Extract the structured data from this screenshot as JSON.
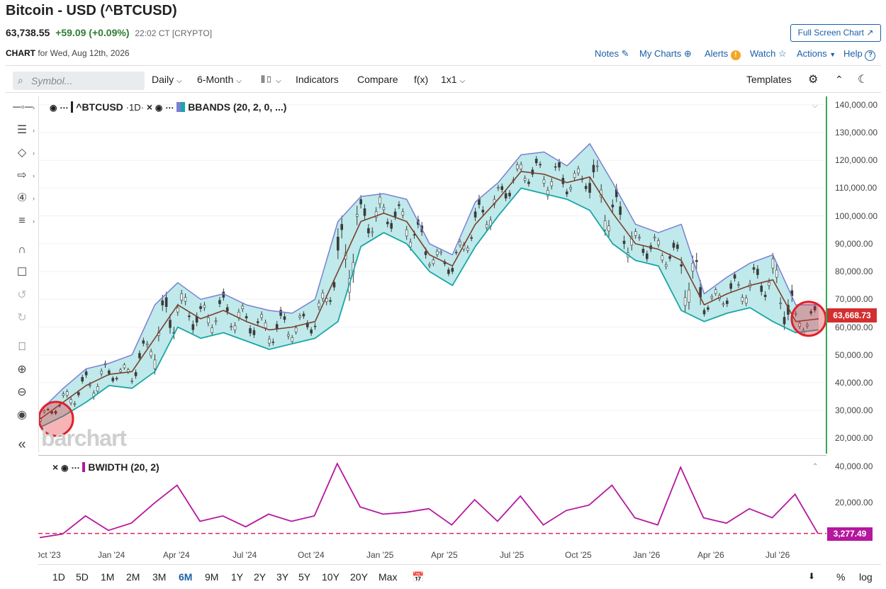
{
  "header": {
    "title": "Bitcoin - USD (^BTCUSD)",
    "last_price": "63,738.55",
    "change": "+59.09 (+0.09%)",
    "time": "22:02 CT [CRYPTO]",
    "fullscreen_label": "Full Screen Chart",
    "chart_for_bold": "CHART",
    "chart_for_rest": "for Wed, Aug 12th, 2026"
  },
  "top_links": {
    "notes": "Notes",
    "my_charts": "My Charts",
    "alerts": "Alerts",
    "watch": "Watch",
    "actions": "Actions",
    "help": "Help"
  },
  "toolbar": {
    "search_placeholder": "Symbol...",
    "interval": "Daily",
    "range": "6-Month",
    "indicators": "Indicators",
    "compare": "Compare",
    "fx": "f(x)",
    "layout": "1x1",
    "templates": "Templates"
  },
  "main_legend": {
    "symbol": "^BTCUSD",
    "interval": "·1D·",
    "study": "BBANDS (20, 2, 0, ...)"
  },
  "indicator_legend": {
    "study": "BWIDTH (20, 2)"
  },
  "colors": {
    "band_fill": "#bfe9ea",
    "upper_band": "#7b7fd4",
    "lower_band": "#19a6a6",
    "middle_band": "#7b3f2e",
    "candle": "#3a3a3a",
    "bwidth": "#b5179e",
    "price_tag": "#d32f2f",
    "axis_green": "#34a853",
    "highlight": "#e0202a"
  },
  "price_tag": "63,668.73",
  "bwidth_tag": "3,277.49",
  "watermark": "barchart",
  "range_buttons": [
    "1D",
    "5D",
    "1M",
    "2M",
    "3M",
    "6M",
    "9M",
    "1Y",
    "2Y",
    "3Y",
    "5Y",
    "10Y",
    "20Y",
    "Max"
  ],
  "range_active": "6M",
  "bottom_right": {
    "percent": "%",
    "log": "log"
  },
  "chart_data": [
    {
      "type": "line",
      "title": "^BTCUSD ·1D· BBANDS (20, 2, 0, ...)",
      "x_ticks": [
        "Oct '23",
        "Jan '24",
        "Apr '24",
        "Jul '24",
        "Oct '24",
        "Jan '25",
        "Apr '25",
        "Jul '25",
        "Oct '25",
        "Jan '26",
        "Apr '26",
        "Jul '26"
      ],
      "y_ticks": [
        "140,000.00",
        "130,000.00",
        "120,000.00",
        "110,000.00",
        "100,000.00",
        "90,000.00",
        "80,000.00",
        "70,000.00",
        "60,000.00",
        "50,000.00",
        "40,000.00",
        "30,000.00",
        "20,000.00"
      ],
      "ylim": [
        15000,
        143000
      ],
      "x": [
        "Oct '23",
        "Nov '23",
        "Dec '23",
        "Jan '24",
        "Feb '24",
        "Mar '24",
        "Apr '24",
        "May '24",
        "Jun '24",
        "Jul '24",
        "Aug '24",
        "Sep '24",
        "Oct '24",
        "Nov '24",
        "Dec '24",
        "Jan '25",
        "Feb '25",
        "Mar '25",
        "Apr '25",
        "May '25",
        "Jun '25",
        "Jul '25",
        "Aug '25",
        "Sep '25",
        "Oct '25",
        "Nov '25",
        "Dec '25",
        "Jan '26",
        "Feb '26",
        "Mar '26",
        "Apr '26",
        "May '26",
        "Jun '26",
        "Jul '26",
        "Aug '26"
      ],
      "series": [
        {
          "name": "Upper",
          "values": [
            30000,
            38000,
            45000,
            47000,
            50000,
            68000,
            76000,
            70000,
            72000,
            68000,
            66000,
            65000,
            70000,
            98000,
            107000,
            108000,
            106000,
            90000,
            86000,
            105000,
            112000,
            122000,
            123000,
            118000,
            126000,
            112000,
            97000,
            94000,
            97000,
            72000,
            78000,
            83000,
            86000,
            68000,
            68000
          ]
        },
        {
          "name": "Middle",
          "values": [
            27000,
            33000,
            39000,
            43000,
            44000,
            56000,
            68000,
            63000,
            66000,
            62000,
            59000,
            60000,
            62000,
            80000,
            98000,
            101000,
            98000,
            86000,
            82000,
            97000,
            106000,
            116000,
            115000,
            112000,
            114000,
            101000,
            90000,
            88000,
            84000,
            68000,
            72000,
            75000,
            77000,
            62000,
            63000
          ]
        },
        {
          "name": "Lower",
          "values": [
            24000,
            28000,
            33000,
            39000,
            38000,
            44000,
            60000,
            56000,
            58000,
            55000,
            52000,
            54000,
            56000,
            62000,
            89000,
            94000,
            90000,
            80000,
            75000,
            89000,
            100000,
            110000,
            108000,
            106000,
            102000,
            90000,
            84000,
            82000,
            66000,
            62000,
            65000,
            67000,
            62000,
            58000,
            59000
          ]
        }
      ]
    },
    {
      "type": "line",
      "title": "BWIDTH (20, 2)",
      "y_ticks": [
        "40,000.00",
        "20,000.00"
      ],
      "ylim": [
        0,
        44000
      ],
      "x": [
        "Oct '23",
        "Nov '23",
        "Dec '23",
        "Jan '24",
        "Feb '24",
        "Mar '24",
        "Apr '24",
        "May '24",
        "Jun '24",
        "Jul '24",
        "Aug '24",
        "Sep '24",
        "Oct '24",
        "Nov '24",
        "Dec '24",
        "Jan '25",
        "Feb '25",
        "Mar '25",
        "Apr '25",
        "May '25",
        "Jun '25",
        "Jul '25",
        "Aug '25",
        "Sep '25",
        "Oct '25",
        "Nov '25",
        "Dec '25",
        "Jan '26",
        "Feb '26",
        "Mar '26",
        "Apr '26",
        "May '26",
        "Jun '26",
        "Jul '26",
        "Aug '26"
      ],
      "series": [
        {
          "name": "BWIDTH",
          "values": [
            1000,
            3000,
            13000,
            5000,
            9000,
            20000,
            30000,
            10000,
            13000,
            7000,
            14000,
            10000,
            13000,
            42000,
            18000,
            14000,
            15000,
            17000,
            8000,
            22000,
            10000,
            24000,
            8000,
            16000,
            19000,
            30000,
            12000,
            8000,
            40000,
            12000,
            9000,
            17000,
            12000,
            25000,
            3277
          ]
        }
      ]
    }
  ]
}
